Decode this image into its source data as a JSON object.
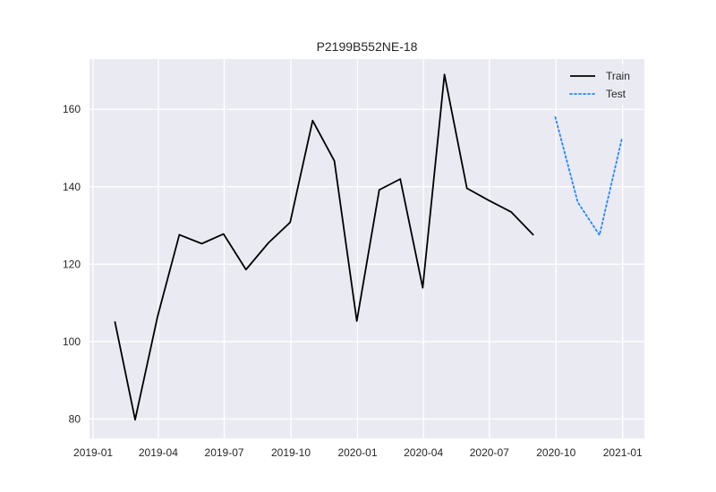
{
  "chart_data": {
    "type": "line",
    "title": "P2199B552NE-18",
    "xlabel": "",
    "ylabel": "",
    "x_axis": {
      "kind": "date",
      "range": [
        "2018-12-27",
        "2021-01-31"
      ],
      "ticks": [
        "2019-01-01",
        "2019-04-01",
        "2019-07-01",
        "2019-10-01",
        "2020-01-01",
        "2020-04-01",
        "2020-07-01",
        "2020-10-01",
        "2021-01-01"
      ],
      "tick_labels": [
        "2019-01",
        "2019-04",
        "2019-07",
        "2019-10",
        "2020-01",
        "2020-04",
        "2020-07",
        "2020-10",
        "2021-01"
      ]
    },
    "y_axis": {
      "range": [
        75,
        173
      ],
      "ticks": [
        80,
        100,
        120,
        140,
        160
      ],
      "tick_labels": [
        "80",
        "100",
        "120",
        "140",
        "160"
      ]
    },
    "grid": true,
    "legend": {
      "placement": "top-right"
    },
    "series": [
      {
        "name": "Train",
        "color": "#000000",
        "style": "solid",
        "points": [
          {
            "x": "2019-01-31",
            "y": 105.2
          },
          {
            "x": "2019-02-28",
            "y": 79.8
          },
          {
            "x": "2019-03-31",
            "y": 106.5
          },
          {
            "x": "2019-04-30",
            "y": 127.6
          },
          {
            "x": "2019-05-31",
            "y": 125.3
          },
          {
            "x": "2019-06-30",
            "y": 127.8
          },
          {
            "x": "2019-07-31",
            "y": 118.6
          },
          {
            "x": "2019-08-31",
            "y": 125.5
          },
          {
            "x": "2019-09-30",
            "y": 130.8
          },
          {
            "x": "2019-10-31",
            "y": 157.1
          },
          {
            "x": "2019-11-30",
            "y": 146.7
          },
          {
            "x": "2019-12-31",
            "y": 105.3
          },
          {
            "x": "2020-01-31",
            "y": 139.2
          },
          {
            "x": "2020-02-29",
            "y": 142.0
          },
          {
            "x": "2020-03-31",
            "y": 113.9
          },
          {
            "x": "2020-04-30",
            "y": 169.0
          },
          {
            "x": "2020-05-31",
            "y": 139.6
          },
          {
            "x": "2020-06-30",
            "y": 136.5
          },
          {
            "x": "2020-07-31",
            "y": 133.5
          },
          {
            "x": "2020-08-31",
            "y": 127.5
          }
        ]
      },
      {
        "name": "Test",
        "color": "#1e88ff",
        "style": "dotted",
        "points": [
          {
            "x": "2020-09-30",
            "y": 158.0
          },
          {
            "x": "2020-10-31",
            "y": 136.0
          },
          {
            "x": "2020-11-30",
            "y": 127.5
          },
          {
            "x": "2020-12-31",
            "y": 152.5
          }
        ]
      }
    ]
  }
}
